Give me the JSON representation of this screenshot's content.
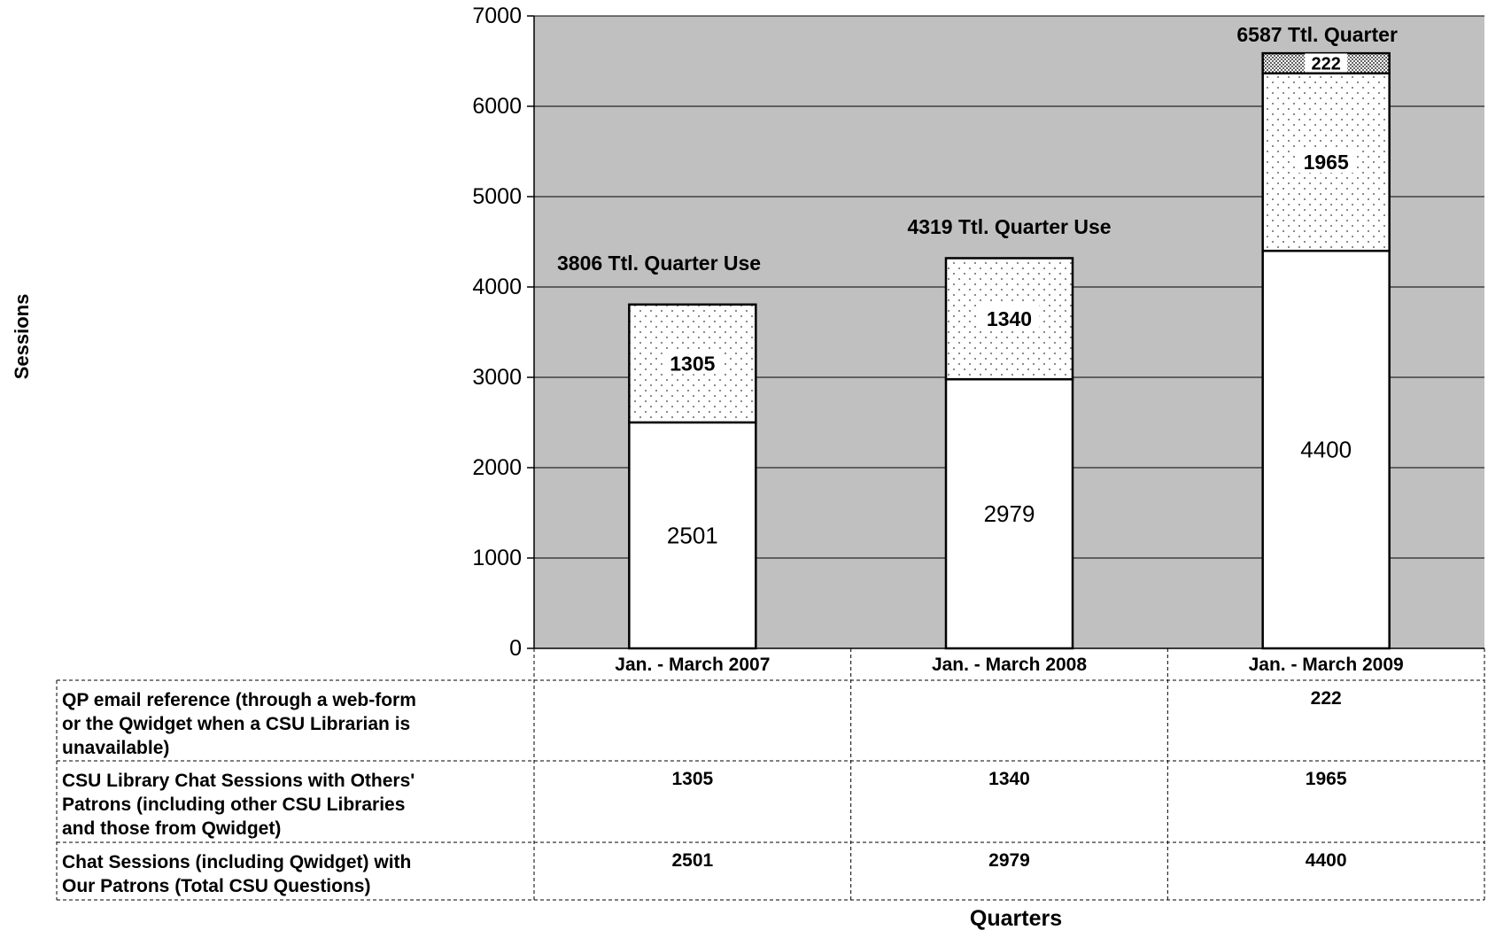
{
  "chart_data": {
    "type": "bar",
    "stacked": true,
    "title": "",
    "xlabel": "Quarters",
    "ylabel": "Sessions",
    "ylim": [
      0,
      7000
    ],
    "yticks": [
      0,
      1000,
      2000,
      3000,
      4000,
      5000,
      6000,
      7000
    ],
    "ytick_labels": [
      "0",
      "1000",
      "2000",
      "3000",
      "4000",
      "5000",
      "6000",
      "7000"
    ],
    "grid": true,
    "categories": [
      "Jan. - March 2007",
      "Jan. - March 2008",
      "Jan. - March 2009"
    ],
    "totals": [
      3806,
      4319,
      6587
    ],
    "total_labels": [
      "3806 Ttl. Quarter Use",
      "4319 Ttl. Quarter Use",
      "6587 Ttl. Quarter"
    ],
    "series": [
      {
        "name": "Chat Sessions (including Qwidget) with Our Patrons (Total CSU Questions)",
        "values": [
          2501,
          2979,
          4400
        ],
        "value_labels": [
          "2501",
          "2979",
          "4400"
        ],
        "table_values": [
          "2501",
          "2979",
          "4400"
        ],
        "fill": "white"
      },
      {
        "name": "CSU Library Chat Sessions with Others' Patrons (including other CSU Libraries and those from Qwidget)",
        "values": [
          1305,
          1340,
          1965
        ],
        "value_labels": [
          "1305",
          "1340",
          "1965"
        ],
        "table_values": [
          "1305",
          "1340",
          "1965"
        ],
        "fill": "light-dots"
      },
      {
        "name": "QP email reference (through a web-form or the Qwidget when a CSU Librarian is unavailable)",
        "values": [
          null,
          null,
          222
        ],
        "value_labels": [
          "",
          "",
          "222"
        ],
        "table_values": [
          "",
          "",
          "222"
        ],
        "fill": "dense-dots"
      }
    ],
    "colors": {
      "plot_background": "#c0c0c0",
      "gridline": "#000000",
      "bar_fill": "#ffffff",
      "bar_stroke": "#000000"
    }
  }
}
